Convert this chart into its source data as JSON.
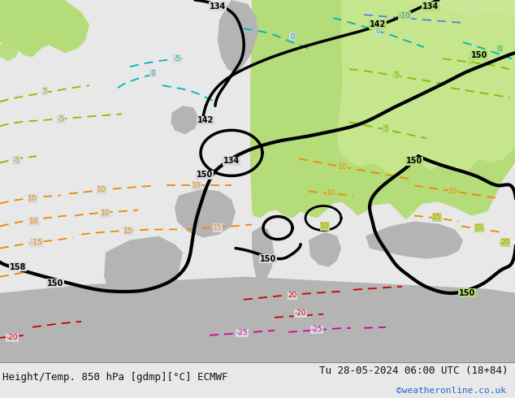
{
  "title_left": "Height/Temp. 850 hPa [gdmp][°C] ECMWF",
  "title_right": "Tu 28-05-2024 06:00 UTC (18+84)",
  "watermark": "©weatheronline.co.uk",
  "bg_light": "#f0f0f0",
  "land_gray": "#b4b4b4",
  "ocean_color": "#d8d8d8",
  "green_warm": "#b4dc78",
  "green_light": "#c8e890",
  "title_fontsize": 9,
  "watermark_color": "#2266cc",
  "bottom_bar_color": "#e8e8e8",
  "figsize": [
    6.34,
    4.9
  ],
  "dpi": 100,
  "black": "#000000",
  "cyan_cold": "#00b4b4",
  "blue_cold": "#4488ee",
  "lime_mild": "#88bb00",
  "orange_warm": "#ee8800",
  "red_hot": "#cc0000",
  "magenta_hot": "#cc00aa"
}
